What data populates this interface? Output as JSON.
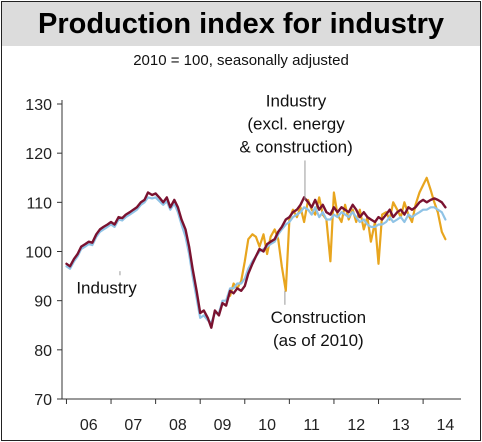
{
  "chart_data": {
    "type": "line",
    "title": "Production index for industry",
    "subtitle": "2010 = 100, seasonally adjusted",
    "xlabel": "",
    "ylabel": "",
    "ylim": [
      70,
      130
    ],
    "yticks": [
      70,
      80,
      90,
      100,
      110,
      120,
      130
    ],
    "xticks": [
      "06",
      "07",
      "08",
      "09",
      "10",
      "11",
      "12",
      "13",
      "14"
    ],
    "xticks_pos": [
      2006.5,
      2007.5,
      2008.5,
      2009.5,
      2010.5,
      2011.5,
      2012.5,
      2013.5,
      2014.5
    ],
    "xlim": [
      2005.9,
      2014.85
    ],
    "grid": false,
    "series": [
      {
        "name": "Industry",
        "color": "#7a1230",
        "points": [
          [
            2006.0,
            97.5
          ],
          [
            2006.08,
            97.0
          ],
          [
            2006.17,
            98.5
          ],
          [
            2006.25,
            99.5
          ],
          [
            2006.33,
            101.0
          ],
          [
            2006.42,
            101.5
          ],
          [
            2006.5,
            102.0
          ],
          [
            2006.58,
            101.8
          ],
          [
            2006.67,
            103.5
          ],
          [
            2006.75,
            104.5
          ],
          [
            2006.83,
            105.0
          ],
          [
            2006.92,
            105.5
          ],
          [
            2007.0,
            106.0
          ],
          [
            2007.08,
            105.5
          ],
          [
            2007.17,
            107.0
          ],
          [
            2007.25,
            106.8
          ],
          [
            2007.33,
            107.5
          ],
          [
            2007.42,
            108.0
          ],
          [
            2007.5,
            108.5
          ],
          [
            2007.58,
            109.0
          ],
          [
            2007.67,
            110.0
          ],
          [
            2007.75,
            110.5
          ],
          [
            2007.83,
            112.0
          ],
          [
            2007.92,
            111.5
          ],
          [
            2008.0,
            111.8
          ],
          [
            2008.08,
            111.0
          ],
          [
            2008.17,
            110.0
          ],
          [
            2008.25,
            111.0
          ],
          [
            2008.33,
            109.0
          ],
          [
            2008.42,
            110.5
          ],
          [
            2008.5,
            109.0
          ],
          [
            2008.58,
            106.5
          ],
          [
            2008.67,
            104.5
          ],
          [
            2008.75,
            101.0
          ],
          [
            2008.83,
            96.5
          ],
          [
            2008.92,
            92.0
          ],
          [
            2009.0,
            87.5
          ],
          [
            2009.08,
            88.0
          ],
          [
            2009.17,
            86.5
          ],
          [
            2009.25,
            84.5
          ],
          [
            2009.33,
            88.0
          ],
          [
            2009.42,
            87.0
          ],
          [
            2009.5,
            89.5
          ],
          [
            2009.58,
            89.0
          ],
          [
            2009.67,
            92.0
          ],
          [
            2009.75,
            91.5
          ],
          [
            2009.83,
            92.5
          ],
          [
            2009.92,
            92.0
          ],
          [
            2010.0,
            93.0
          ],
          [
            2010.08,
            95.5
          ],
          [
            2010.17,
            97.5
          ],
          [
            2010.25,
            99.0
          ],
          [
            2010.33,
            100.5
          ],
          [
            2010.42,
            100.0
          ],
          [
            2010.5,
            101.5
          ],
          [
            2010.58,
            102.0
          ],
          [
            2010.67,
            102.5
          ],
          [
            2010.75,
            104.0
          ],
          [
            2010.83,
            105.0
          ],
          [
            2010.92,
            106.5
          ],
          [
            2011.0,
            107.0
          ],
          [
            2011.08,
            108.0
          ],
          [
            2011.17,
            108.5
          ],
          [
            2011.25,
            109.5
          ],
          [
            2011.33,
            111.0
          ],
          [
            2011.42,
            110.0
          ],
          [
            2011.5,
            109.0
          ],
          [
            2011.58,
            110.5
          ],
          [
            2011.67,
            108.5
          ],
          [
            2011.75,
            109.5
          ],
          [
            2011.83,
            108.0
          ],
          [
            2011.92,
            107.5
          ],
          [
            2012.0,
            109.0
          ],
          [
            2012.08,
            108.0
          ],
          [
            2012.17,
            109.0
          ],
          [
            2012.25,
            108.5
          ],
          [
            2012.33,
            108.0
          ],
          [
            2012.42,
            109.5
          ],
          [
            2012.5,
            108.5
          ],
          [
            2012.58,
            107.0
          ],
          [
            2012.67,
            108.0
          ],
          [
            2012.75,
            107.0
          ],
          [
            2012.83,
            106.5
          ],
          [
            2012.92,
            106.0
          ],
          [
            2013.0,
            107.0
          ],
          [
            2013.08,
            106.5
          ],
          [
            2013.17,
            107.5
          ],
          [
            2013.25,
            108.5
          ],
          [
            2013.33,
            107.0
          ],
          [
            2013.42,
            108.0
          ],
          [
            2013.5,
            108.5
          ],
          [
            2013.58,
            107.5
          ],
          [
            2013.67,
            109.0
          ],
          [
            2013.75,
            108.5
          ],
          [
            2013.83,
            109.0
          ],
          [
            2013.92,
            110.0
          ],
          [
            2014.0,
            110.5
          ],
          [
            2014.08,
            110.0
          ],
          [
            2014.17,
            110.5
          ],
          [
            2014.25,
            110.8
          ],
          [
            2014.33,
            110.5
          ],
          [
            2014.42,
            110.0
          ],
          [
            2014.5,
            109.0
          ]
        ]
      },
      {
        "name": "Industry (excl. energy & construction)",
        "color": "#8fc3e6",
        "points": [
          [
            2006.0,
            97.0
          ],
          [
            2006.08,
            96.5
          ],
          [
            2006.17,
            98.0
          ],
          [
            2006.25,
            99.0
          ],
          [
            2006.33,
            100.5
          ],
          [
            2006.42,
            101.0
          ],
          [
            2006.5,
            101.5
          ],
          [
            2006.58,
            101.3
          ],
          [
            2006.67,
            103.0
          ],
          [
            2006.75,
            104.0
          ],
          [
            2006.83,
            104.5
          ],
          [
            2006.92,
            105.0
          ],
          [
            2007.0,
            105.5
          ],
          [
            2007.08,
            105.0
          ],
          [
            2007.17,
            106.5
          ],
          [
            2007.25,
            106.3
          ],
          [
            2007.33,
            107.0
          ],
          [
            2007.42,
            107.5
          ],
          [
            2007.5,
            108.0
          ],
          [
            2007.58,
            108.5
          ],
          [
            2007.67,
            109.5
          ],
          [
            2007.75,
            110.0
          ],
          [
            2007.83,
            111.0
          ],
          [
            2007.92,
            110.8
          ],
          [
            2008.0,
            111.0
          ],
          [
            2008.08,
            110.3
          ],
          [
            2008.17,
            109.5
          ],
          [
            2008.25,
            110.2
          ],
          [
            2008.33,
            108.5
          ],
          [
            2008.42,
            109.8
          ],
          [
            2008.5,
            108.0
          ],
          [
            2008.58,
            105.5
          ],
          [
            2008.67,
            103.0
          ],
          [
            2008.75,
            99.5
          ],
          [
            2008.83,
            95.0
          ],
          [
            2008.92,
            90.5
          ],
          [
            2009.0,
            86.5
          ],
          [
            2009.08,
            87.0
          ],
          [
            2009.17,
            86.0
          ],
          [
            2009.25,
            85.5
          ],
          [
            2009.33,
            87.5
          ],
          [
            2009.42,
            87.5
          ],
          [
            2009.5,
            90.0
          ],
          [
            2009.58,
            90.0
          ],
          [
            2009.67,
            92.5
          ],
          [
            2009.75,
            92.5
          ],
          [
            2009.83,
            93.5
          ],
          [
            2009.92,
            93.5
          ],
          [
            2010.0,
            94.5
          ],
          [
            2010.08,
            96.5
          ],
          [
            2010.17,
            98.0
          ],
          [
            2010.25,
            99.0
          ],
          [
            2010.33,
            100.0
          ],
          [
            2010.42,
            100.5
          ],
          [
            2010.5,
            101.0
          ],
          [
            2010.58,
            101.5
          ],
          [
            2010.67,
            102.0
          ],
          [
            2010.75,
            103.5
          ],
          [
            2010.83,
            104.5
          ],
          [
            2010.92,
            105.5
          ],
          [
            2011.0,
            106.0
          ],
          [
            2011.08,
            107.0
          ],
          [
            2011.17,
            107.5
          ],
          [
            2011.25,
            108.0
          ],
          [
            2011.33,
            109.0
          ],
          [
            2011.42,
            108.5
          ],
          [
            2011.5,
            107.5
          ],
          [
            2011.58,
            109.0
          ],
          [
            2011.67,
            107.0
          ],
          [
            2011.75,
            108.0
          ],
          [
            2011.83,
            106.5
          ],
          [
            2011.92,
            106.5
          ],
          [
            2012.0,
            107.5
          ],
          [
            2012.08,
            107.0
          ],
          [
            2012.17,
            108.0
          ],
          [
            2012.25,
            107.5
          ],
          [
            2012.33,
            107.0
          ],
          [
            2012.42,
            108.0
          ],
          [
            2012.5,
            107.0
          ],
          [
            2012.58,
            106.0
          ],
          [
            2012.67,
            106.5
          ],
          [
            2012.75,
            105.5
          ],
          [
            2012.83,
            105.0
          ],
          [
            2012.92,
            105.0
          ],
          [
            2013.0,
            105.5
          ],
          [
            2013.08,
            105.5
          ],
          [
            2013.17,
            106.0
          ],
          [
            2013.25,
            107.0
          ],
          [
            2013.33,
            106.0
          ],
          [
            2013.42,
            106.5
          ],
          [
            2013.5,
            107.0
          ],
          [
            2013.58,
            106.0
          ],
          [
            2013.67,
            107.5
          ],
          [
            2013.75,
            107.0
          ],
          [
            2013.83,
            107.5
          ],
          [
            2013.92,
            108.0
          ],
          [
            2014.0,
            108.5
          ],
          [
            2014.08,
            108.5
          ],
          [
            2014.17,
            109.0
          ],
          [
            2014.25,
            109.0
          ],
          [
            2014.33,
            108.5
          ],
          [
            2014.42,
            108.0
          ],
          [
            2014.5,
            106.5
          ]
        ]
      },
      {
        "name": "Construction (as of 2010)",
        "color": "#e8a51e",
        "points": [
          [
            2009.67,
            91.0
          ],
          [
            2009.75,
            93.5
          ],
          [
            2009.83,
            92.5
          ],
          [
            2009.92,
            94.0
          ],
          [
            2010.0,
            98.0
          ],
          [
            2010.08,
            102.5
          ],
          [
            2010.17,
            103.5
          ],
          [
            2010.25,
            103.0
          ],
          [
            2010.33,
            101.0
          ],
          [
            2010.42,
            103.5
          ],
          [
            2010.5,
            99.5
          ],
          [
            2010.58,
            103.0
          ],
          [
            2010.67,
            104.5
          ],
          [
            2010.75,
            102.5
          ],
          [
            2010.83,
            97.0
          ],
          [
            2010.92,
            92.0
          ],
          [
            2011.0,
            106.5
          ],
          [
            2011.08,
            108.5
          ],
          [
            2011.17,
            107.0
          ],
          [
            2011.25,
            109.0
          ],
          [
            2011.33,
            106.0
          ],
          [
            2011.42,
            110.5
          ],
          [
            2011.5,
            108.5
          ],
          [
            2011.58,
            107.5
          ],
          [
            2011.67,
            111.0
          ],
          [
            2011.75,
            107.5
          ],
          [
            2011.83,
            106.5
          ],
          [
            2011.92,
            98.0
          ],
          [
            2012.0,
            112.0
          ],
          [
            2012.08,
            107.5
          ],
          [
            2012.17,
            106.0
          ],
          [
            2012.25,
            109.5
          ],
          [
            2012.33,
            106.5
          ],
          [
            2012.42,
            108.5
          ],
          [
            2012.5,
            106.0
          ],
          [
            2012.58,
            108.5
          ],
          [
            2012.67,
            104.5
          ],
          [
            2012.75,
            107.0
          ],
          [
            2012.83,
            102.0
          ],
          [
            2012.92,
            106.0
          ],
          [
            2013.0,
            97.5
          ],
          [
            2013.08,
            107.5
          ],
          [
            2013.17,
            108.0
          ],
          [
            2013.25,
            106.5
          ],
          [
            2013.33,
            110.0
          ],
          [
            2013.42,
            108.5
          ],
          [
            2013.5,
            107.0
          ],
          [
            2013.58,
            110.0
          ],
          [
            2013.67,
            107.5
          ],
          [
            2013.75,
            106.0
          ],
          [
            2013.83,
            109.5
          ],
          [
            2013.92,
            112.0
          ],
          [
            2014.0,
            113.5
          ],
          [
            2014.08,
            115.0
          ],
          [
            2014.17,
            112.5
          ],
          [
            2014.25,
            110.0
          ],
          [
            2014.33,
            108.0
          ],
          [
            2014.42,
            104.0
          ],
          [
            2014.5,
            102.5
          ]
        ]
      }
    ],
    "annotations": [
      {
        "lines": [
          "Industry"
        ],
        "anchor": [
          2007.2,
          96.0
        ],
        "text_at": [
          2006.9,
          91.5
        ],
        "align": "middle"
      },
      {
        "lines": [
          "Industry",
          "(excl. energy",
          "& construction)"
        ],
        "anchor": [
          2011.35,
          110.5
        ],
        "text_at": [
          2011.15,
          129.5
        ],
        "align": "middle"
      },
      {
        "lines": [
          "Construction",
          "(as of 2010)"
        ],
        "anchor": [
          2010.9,
          92.0
        ],
        "text_at": [
          2011.65,
          85.5
        ],
        "align": "middle"
      }
    ]
  }
}
